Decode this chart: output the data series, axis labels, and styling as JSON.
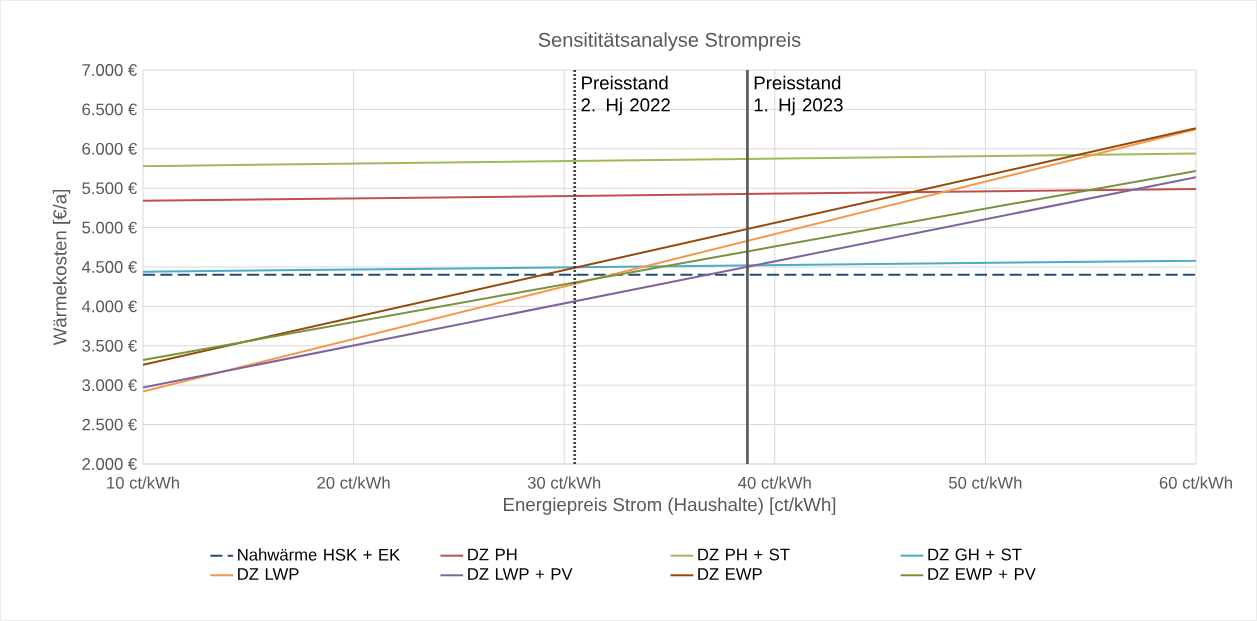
{
  "chart_data": {
    "type": "line",
    "title": "Sensititätsanalyse Strompreis",
    "xlabel": "Energiepreis Strom (Haushalte) [ct/kWh]",
    "ylabel": "Wärmekosten  [€/a]",
    "x": [
      10,
      60
    ],
    "series": [
      {
        "name": "Nahwärme HSK + EK",
        "color": "#1f4e79",
        "line_style": "dashed",
        "values": [
          4400,
          4400
        ]
      },
      {
        "name": "DZ PH",
        "color": "#c0504d",
        "values": [
          5340,
          5490
        ]
      },
      {
        "name": "DZ PH + ST",
        "color": "#9bbb59",
        "values": [
          5780,
          5940
        ]
      },
      {
        "name": "DZ GH + ST",
        "color": "#4bacc6",
        "values": [
          4440,
          4580
        ]
      },
      {
        "name": "DZ LWP",
        "color": "#f79646",
        "values": [
          2920,
          6250
        ]
      },
      {
        "name": "DZ LWP + PV",
        "color": "#8064a2",
        "values": [
          2970,
          5640
        ]
      },
      {
        "name": "DZ EWP",
        "color": "#984807",
        "values": [
          3260,
          6260
        ]
      },
      {
        "name": "DZ EWP + PV",
        "color": "#77933c",
        "values": [
          3320,
          5720
        ]
      }
    ],
    "xlim": [
      10,
      60
    ],
    "xticks": [
      {
        "value": 10,
        "label": "10 ct/kWh"
      },
      {
        "value": 20,
        "label": "20 ct/kWh"
      },
      {
        "value": 30,
        "label": "30 ct/kWh"
      },
      {
        "value": 40,
        "label": "40 ct/kWh"
      },
      {
        "value": 50,
        "label": "50 ct/kWh"
      },
      {
        "value": 60,
        "label": "60 ct/kWh"
      }
    ],
    "ylim": [
      2000,
      7000
    ],
    "yticks": [
      {
        "value": 2000,
        "label": "2.000 €"
      },
      {
        "value": 2500,
        "label": "2.500 €"
      },
      {
        "value": 3000,
        "label": "3.000 €"
      },
      {
        "value": 3500,
        "label": "3.500 €"
      },
      {
        "value": 4000,
        "label": "4.000 €"
      },
      {
        "value": 4500,
        "label": "4.500 €"
      },
      {
        "value": 5000,
        "label": "5.000 €"
      },
      {
        "value": 5500,
        "label": "5.500 €"
      },
      {
        "value": 6000,
        "label": "6.000 €"
      },
      {
        "value": 6500,
        "label": "6.500 €"
      },
      {
        "value": 7000,
        "label": "7.000 €"
      }
    ],
    "ref_lines": [
      {
        "axis": "x",
        "value": 30.5,
        "label": "Preisstand 2. Hj 2022",
        "color": "#404040",
        "line_style": "dotted"
      },
      {
        "axis": "x",
        "value": 38.7,
        "label": "Preisstand 1. Hj 2023",
        "color": "#595959",
        "line_style": "solid"
      }
    ],
    "grid": true,
    "legend": "bottom",
    "marker": "none",
    "line_style": "solid"
  }
}
